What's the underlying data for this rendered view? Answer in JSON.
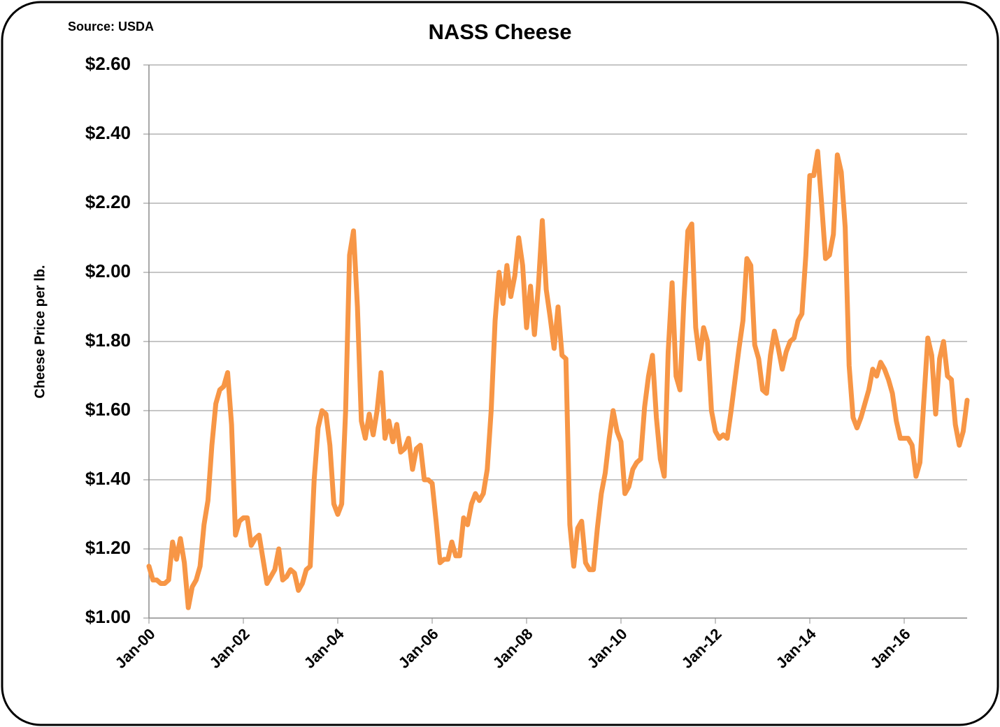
{
  "chart_data": {
    "type": "line",
    "title": "NASS Cheese",
    "source": "Source: USDA",
    "y_label": "Cheese Price per lb.",
    "categories": [
      "Jan-00",
      null,
      null,
      null,
      null,
      null,
      null,
      null,
      null,
      null,
      null,
      null,
      null,
      null,
      null,
      null,
      null,
      null,
      null,
      null,
      null,
      null,
      null,
      null,
      "Jan-02",
      null,
      null,
      null,
      null,
      null,
      null,
      null,
      null,
      null,
      null,
      null,
      null,
      null,
      null,
      null,
      null,
      null,
      null,
      null,
      null,
      null,
      null,
      null,
      "Jan-04",
      null,
      null,
      null,
      null,
      null,
      null,
      null,
      null,
      null,
      null,
      null,
      null,
      null,
      null,
      null,
      null,
      null,
      null,
      null,
      null,
      null,
      null,
      null,
      "Jan-06",
      null,
      null,
      null,
      null,
      null,
      null,
      null,
      null,
      null,
      null,
      null,
      null,
      null,
      null,
      null,
      null,
      null,
      null,
      null,
      null,
      null,
      null,
      null,
      "Jan-08",
      null,
      null,
      null,
      null,
      null,
      null,
      null,
      null,
      null,
      null,
      null,
      null,
      null,
      null,
      null,
      null,
      null,
      null,
      null,
      null,
      null,
      null,
      null,
      "Jan-10",
      null,
      null,
      null,
      null,
      null,
      null,
      null,
      null,
      null,
      null,
      null,
      null,
      null,
      null,
      null,
      null,
      null,
      null,
      null,
      null,
      null,
      null,
      null,
      "Jan-12",
      null,
      null,
      null,
      null,
      null,
      null,
      null,
      null,
      null,
      null,
      null,
      null,
      null,
      null,
      null,
      null,
      null,
      null,
      null,
      null,
      null,
      null,
      null,
      "Jan-14",
      null,
      null,
      null,
      null,
      null,
      null,
      null,
      null,
      null,
      null,
      null,
      null,
      null,
      null,
      null,
      null,
      null,
      null,
      null,
      null,
      null,
      null,
      null,
      "Jan-16",
      null,
      null,
      null,
      null,
      null,
      null,
      null,
      null,
      null,
      null,
      null,
      null,
      null,
      null,
      null,
      null
    ],
    "values": [
      1.15,
      1.11,
      1.11,
      1.1,
      1.1,
      1.11,
      1.22,
      1.17,
      1.23,
      1.16,
      1.03,
      1.09,
      1.11,
      1.15,
      1.27,
      1.34,
      1.5,
      1.62,
      1.66,
      1.67,
      1.71,
      1.56,
      1.24,
      1.28,
      1.29,
      1.29,
      1.21,
      1.23,
      1.24,
      1.17,
      1.1,
      1.12,
      1.14,
      1.2,
      1.11,
      1.12,
      1.14,
      1.13,
      1.08,
      1.1,
      1.14,
      1.15,
      1.4,
      1.55,
      1.6,
      1.59,
      1.5,
      1.33,
      1.3,
      1.33,
      1.6,
      2.05,
      2.12,
      1.9,
      1.57,
      1.52,
      1.59,
      1.53,
      1.6,
      1.71,
      1.52,
      1.57,
      1.51,
      1.56,
      1.48,
      1.49,
      1.52,
      1.43,
      1.49,
      1.5,
      1.4,
      1.4,
      1.39,
      1.28,
      1.16,
      1.17,
      1.17,
      1.22,
      1.18,
      1.18,
      1.29,
      1.27,
      1.33,
      1.36,
      1.34,
      1.36,
      1.43,
      1.6,
      1.86,
      2.0,
      1.91,
      2.02,
      1.93,
      1.99,
      2.1,
      2.02,
      1.84,
      1.96,
      1.82,
      1.96,
      2.15,
      1.95,
      1.87,
      1.78,
      1.9,
      1.76,
      1.75,
      1.27,
      1.15,
      1.26,
      1.28,
      1.16,
      1.14,
      1.14,
      1.26,
      1.36,
      1.42,
      1.52,
      1.6,
      1.54,
      1.51,
      1.36,
      1.38,
      1.43,
      1.45,
      1.46,
      1.61,
      1.7,
      1.76,
      1.58,
      1.46,
      1.41,
      1.77,
      1.97,
      1.7,
      1.66,
      1.92,
      2.12,
      2.14,
      1.84,
      1.75,
      1.84,
      1.8,
      1.6,
      1.54,
      1.52,
      1.53,
      1.52,
      1.6,
      1.69,
      1.78,
      1.86,
      2.04,
      2.02,
      1.79,
      1.75,
      1.66,
      1.65,
      1.76,
      1.83,
      1.78,
      1.72,
      1.77,
      1.8,
      1.81,
      1.86,
      1.88,
      2.05,
      2.28,
      2.28,
      2.35,
      2.2,
      2.04,
      2.05,
      2.11,
      2.34,
      2.29,
      2.13,
      1.73,
      1.58,
      1.55,
      1.58,
      1.62,
      1.66,
      1.72,
      1.7,
      1.74,
      1.72,
      1.69,
      1.65,
      1.57,
      1.52,
      1.52,
      1.52,
      1.5,
      1.41,
      1.45,
      1.63,
      1.81,
      1.76,
      1.59,
      1.75,
      1.8,
      1.7,
      1.69,
      1.56,
      1.5,
      1.54,
      1.63
    ],
    "color": "#f79646",
    "ylim": [
      1.0,
      2.6
    ],
    "yticks": [
      {
        "value": 1.0,
        "label": "$1.00"
      },
      {
        "value": 1.2,
        "label": "$1.20"
      },
      {
        "value": 1.4,
        "label": "$1.40"
      },
      {
        "value": 1.6,
        "label": "$1.60"
      },
      {
        "value": 1.8,
        "label": "$1.80"
      },
      {
        "value": 2.0,
        "label": "$2.00"
      },
      {
        "value": 2.2,
        "label": "$2.20"
      },
      {
        "value": 2.4,
        "label": "$2.40"
      },
      {
        "value": 2.6,
        "label": "$2.60"
      }
    ],
    "grid": true
  }
}
